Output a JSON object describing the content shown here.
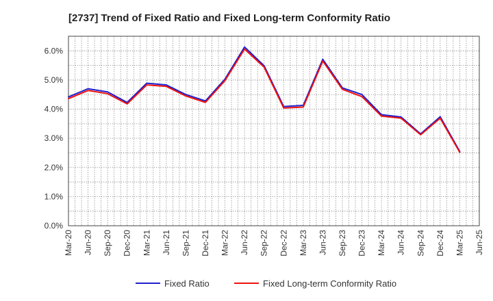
{
  "chart_data": {
    "type": "line",
    "title": "[2737]  Trend of Fixed Ratio and Fixed Long-term Conformity Ratio",
    "xlabel": "",
    "ylabel": "",
    "categories": [
      "Mar-20",
      "Jun-20",
      "Sep-20",
      "Dec-20",
      "Mar-21",
      "Jun-21",
      "Sep-21",
      "Dec-21",
      "Mar-22",
      "Jun-22",
      "Sep-22",
      "Dec-22",
      "Mar-23",
      "Jun-23",
      "Sep-23",
      "Dec-23",
      "Mar-24",
      "Jun-24",
      "Sep-24",
      "Dec-24",
      "Mar-25",
      "Jun-25"
    ],
    "ylim": [
      0,
      6.5
    ],
    "yticks": [
      0,
      1,
      2,
      3,
      4,
      5,
      6
    ],
    "ytick_labels": [
      "0.0%",
      "1.0%",
      "2.0%",
      "3.0%",
      "4.0%",
      "5.0%",
      "6.0%"
    ],
    "grid": true,
    "legend_position": "bottom",
    "series": [
      {
        "name": "Fixed Ratio",
        "color": "#1f1fcc",
        "values": [
          4.42,
          4.7,
          4.59,
          4.23,
          4.89,
          4.83,
          4.5,
          4.28,
          5.03,
          6.13,
          5.49,
          4.09,
          4.13,
          5.71,
          4.73,
          4.5,
          3.81,
          3.73,
          3.15,
          3.74,
          2.55,
          null
        ]
      },
      {
        "name": "Fixed Long-term Conformity Ratio",
        "color": "#ee1111",
        "values": [
          4.36,
          4.64,
          4.53,
          4.18,
          4.83,
          4.78,
          4.45,
          4.23,
          4.98,
          6.06,
          5.44,
          4.04,
          4.07,
          5.65,
          4.68,
          4.43,
          3.76,
          3.69,
          3.12,
          3.69,
          2.52,
          null
        ]
      }
    ]
  }
}
